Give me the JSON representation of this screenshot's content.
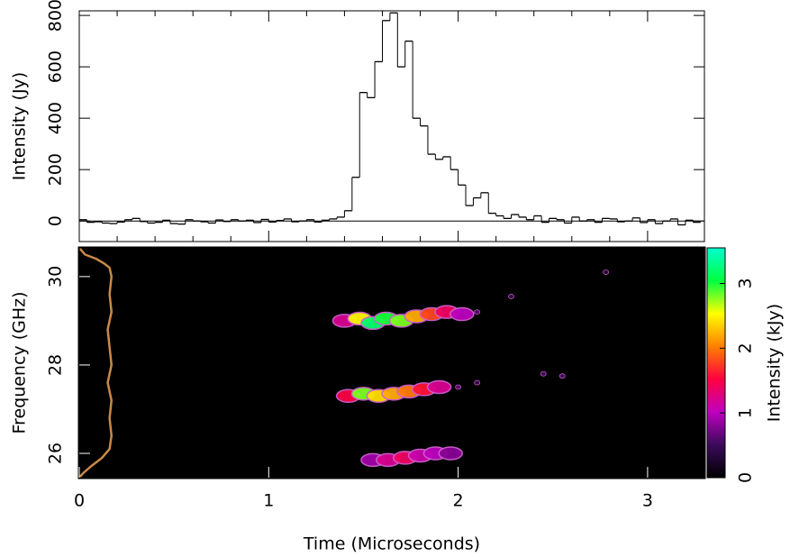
{
  "chart_data": [
    {
      "type": "line",
      "step": true,
      "color": "#000000",
      "ylabel": "Intensity (Jy)",
      "xlim": [
        0,
        3.3
      ],
      "xticks": [
        0,
        1,
        2,
        3
      ],
      "ylim": [
        -80,
        818
      ],
      "yticks": [
        0,
        200,
        400,
        600,
        800
      ],
      "x": [
        0,
        0.04,
        0.08,
        0.12,
        0.16,
        0.2,
        0.24,
        0.28,
        0.32,
        0.36,
        0.4,
        0.44,
        0.48,
        0.52,
        0.56,
        0.6,
        0.64,
        0.68,
        0.72,
        0.76,
        0.8,
        0.84,
        0.88,
        0.92,
        0.96,
        1,
        1.04,
        1.08,
        1.12,
        1.16,
        1.2,
        1.24,
        1.28,
        1.32,
        1.36,
        1.4,
        1.44,
        1.48,
        1.52,
        1.56,
        1.6,
        1.64,
        1.68,
        1.72,
        1.76,
        1.8,
        1.84,
        1.88,
        1.92,
        1.96,
        2,
        2.04,
        2.08,
        2.12,
        2.16,
        2.2,
        2.24,
        2.28,
        2.32,
        2.36,
        2.4,
        2.44,
        2.48,
        2.52,
        2.56,
        2.6,
        2.64,
        2.68,
        2.72,
        2.76,
        2.8,
        2.84,
        2.88,
        2.92,
        2.96,
        3,
        3.04,
        3.08,
        3.12,
        3.16,
        3.2,
        3.24
      ],
      "values": [
        5,
        -5,
        -3,
        -8,
        -10,
        -4,
        5,
        10,
        -2,
        -8,
        -5,
        3,
        -10,
        -12,
        5,
        0,
        -3,
        -8,
        4,
        -2,
        5,
        0,
        3,
        -6,
        6,
        -4,
        2,
        8,
        -3,
        0,
        5,
        -4,
        3,
        8,
        15,
        40,
        170,
        500,
        480,
        620,
        780,
        810,
        600,
        700,
        400,
        370,
        260,
        240,
        250,
        200,
        140,
        60,
        90,
        110,
        30,
        20,
        10,
        25,
        15,
        5,
        20,
        -5,
        10,
        5,
        -8,
        15,
        0,
        5,
        -5,
        10,
        8,
        -3,
        0,
        12,
        -6,
        5,
        -10,
        0,
        8,
        -15,
        3,
        -5
      ]
    },
    {
      "type": "heatmap",
      "xlabel": "Time (Microseconds)",
      "ylabel": "Frequency (GHz)",
      "xlim": [
        0,
        3.3
      ],
      "xticks": [
        0,
        1,
        2,
        3
      ],
      "ylim": [
        25.45,
        30.65
      ],
      "yticks": [
        26,
        28,
        30
      ],
      "colormap": [
        "#000000",
        "#3b0a5a",
        "#c000c0",
        "#ff0040",
        "#ff8000",
        "#ffff00",
        "#00ff40",
        "#00ffd0"
      ],
      "points": {
        "x": [
          1.4,
          1.48,
          1.55,
          1.62,
          1.7,
          1.78,
          1.86,
          1.94,
          2.02,
          2.1,
          1.42,
          1.5,
          1.58,
          1.66,
          1.74,
          1.82,
          1.9,
          2.0,
          2.1,
          1.55,
          1.63,
          1.72,
          1.8,
          1.88,
          1.96,
          2.28,
          2.45,
          2.55,
          2.78
        ],
        "y": [
          29.0,
          29.05,
          28.95,
          29.05,
          29.0,
          29.1,
          29.15,
          29.2,
          29.15,
          29.2,
          27.3,
          27.35,
          27.3,
          27.35,
          27.4,
          27.45,
          27.5,
          27.5,
          27.6,
          25.85,
          25.85,
          25.9,
          25.95,
          26.0,
          26.0,
          29.55,
          27.8,
          27.75,
          30.1
        ],
        "values": [
          1.2,
          2.5,
          3.2,
          3.0,
          2.8,
          2.2,
          1.8,
          1.4,
          1.0,
          0.6,
          1.5,
          2.8,
          2.4,
          2.2,
          2.0,
          1.6,
          1.2,
          0.6,
          0.4,
          0.9,
          1.2,
          1.4,
          1.1,
          1.0,
          0.8,
          0.4,
          0.5,
          0.5,
          0.3
        ]
      },
      "profile": {
        "color": "#c8894a",
        "y": [
          30.65,
          30.5,
          30.4,
          30.3,
          30.2,
          30.0,
          29.6,
          29.2,
          28.8,
          28.4,
          28.0,
          27.6,
          27.2,
          26.8,
          26.4,
          26.1,
          25.9,
          25.7,
          25.55,
          25.45
        ],
        "values": [
          0.0,
          0.03,
          0.09,
          0.13,
          0.16,
          0.17,
          0.16,
          0.17,
          0.15,
          0.16,
          0.17,
          0.15,
          0.17,
          0.16,
          0.17,
          0.16,
          0.12,
          0.06,
          0.02,
          0.0
        ]
      },
      "colorbar": {
        "label": "Intensity (kJy)",
        "lim": [
          0,
          3.55
        ],
        "ticks": [
          0,
          1,
          2,
          3
        ]
      }
    }
  ]
}
